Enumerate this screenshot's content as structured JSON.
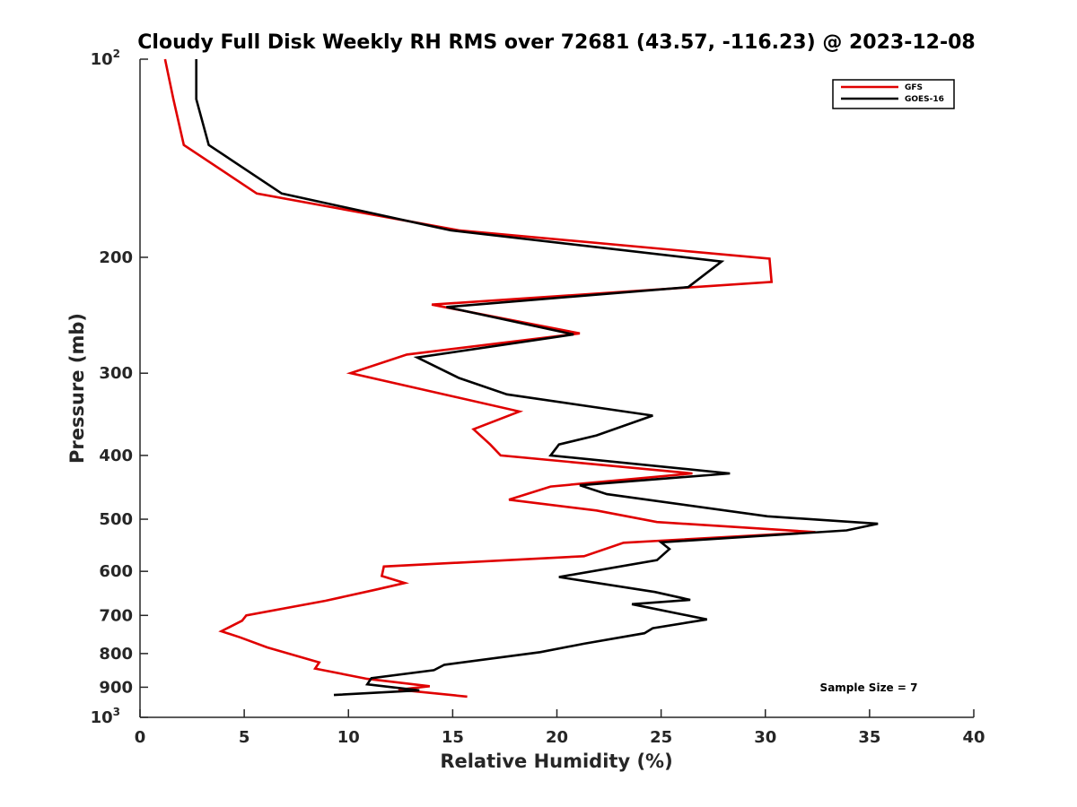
{
  "chart_data": {
    "type": "line",
    "title": "Cloudy Full Disk Weekly RH RMS over 72681 (43.57, -116.23) @ 2023-12-08",
    "xlabel": "Relative Humidity (%)",
    "ylabel": "Pressure (mb)",
    "xlim": [
      0,
      40
    ],
    "ylim": [
      100,
      1000
    ],
    "y_scale": "log",
    "y_reversed": true,
    "grid": false,
    "legend_position": "top-right",
    "x_ticks": [
      0,
      5,
      10,
      15,
      20,
      25,
      30,
      35,
      40
    ],
    "x_tick_labels": [
      "0",
      "5",
      "10",
      "15",
      "20",
      "25",
      "30",
      "35",
      "40"
    ],
    "y_ticks": [
      100,
      200,
      300,
      400,
      500,
      600,
      700,
      800,
      900,
      1000
    ],
    "y_tick_labels": [
      {
        "base": "10",
        "exp": "2"
      },
      {
        "base": "200"
      },
      {
        "base": "300"
      },
      {
        "base": "400"
      },
      {
        "base": "500"
      },
      {
        "base": "600"
      },
      {
        "base": "700"
      },
      {
        "base": "800"
      },
      {
        "base": "900"
      },
      {
        "base": "10",
        "exp": "3"
      }
    ],
    "series": [
      {
        "name": "GFS",
        "color": "#e00000",
        "points": [
          [
            1.2,
            100
          ],
          [
            1.6,
            115
          ],
          [
            2.1,
            135
          ],
          [
            5.6,
            160
          ],
          [
            15.3,
            182
          ],
          [
            30.2,
            201
          ],
          [
            30.3,
            218
          ],
          [
            14.0,
            236
          ],
          [
            21.1,
            261
          ],
          [
            12.8,
            281
          ],
          [
            10.1,
            300
          ],
          [
            18.2,
            343
          ],
          [
            16.0,
            365
          ],
          [
            16.8,
            385
          ],
          [
            17.3,
            400
          ],
          [
            26.5,
            426
          ],
          [
            19.7,
            446
          ],
          [
            17.7,
            467
          ],
          [
            21.9,
            485
          ],
          [
            24.8,
            505
          ],
          [
            32.4,
            523
          ],
          [
            23.2,
            543
          ],
          [
            21.3,
            569
          ],
          [
            11.7,
            590
          ],
          [
            11.6,
            610
          ],
          [
            12.7,
            625
          ],
          [
            11.3,
            640
          ],
          [
            8.9,
            665
          ],
          [
            5.1,
            700
          ],
          [
            4.9,
            713
          ],
          [
            3.9,
            740
          ],
          [
            4.8,
            756
          ],
          [
            6.1,
            783
          ],
          [
            8.6,
            825
          ],
          [
            8.4,
            843
          ],
          [
            10.9,
            874
          ],
          [
            13.9,
            897
          ],
          [
            12.4,
            908
          ],
          [
            15.7,
            930
          ]
        ]
      },
      {
        "name": "GOES-16",
        "color": "#000000",
        "points": [
          [
            2.7,
            100
          ],
          [
            2.7,
            115
          ],
          [
            3.3,
            135
          ],
          [
            6.8,
            160
          ],
          [
            14.9,
            182
          ],
          [
            27.9,
            203
          ],
          [
            26.3,
            222
          ],
          [
            14.7,
            238
          ],
          [
            20.8,
            262
          ],
          [
            13.3,
            284
          ],
          [
            15.3,
            305
          ],
          [
            17.6,
            323
          ],
          [
            24.6,
            348
          ],
          [
            21.9,
            373
          ],
          [
            20.1,
            385
          ],
          [
            19.7,
            400
          ],
          [
            28.3,
            426
          ],
          [
            21.1,
            444
          ],
          [
            22.4,
            458
          ],
          [
            30.1,
            495
          ],
          [
            35.4,
            508
          ],
          [
            33.9,
            520
          ],
          [
            25.0,
            542
          ],
          [
            25.4,
            555
          ],
          [
            24.8,
            577
          ],
          [
            20.1,
            612
          ],
          [
            24.7,
            645
          ],
          [
            26.4,
            663
          ],
          [
            23.6,
            673
          ],
          [
            27.2,
            710
          ],
          [
            24.6,
            732
          ],
          [
            24.2,
            745
          ],
          [
            21.3,
            773
          ],
          [
            19.2,
            796
          ],
          [
            14.6,
            832
          ],
          [
            14.1,
            848
          ],
          [
            11.1,
            872
          ],
          [
            10.9,
            891
          ],
          [
            13.4,
            910
          ],
          [
            9.3,
            925
          ]
        ]
      }
    ],
    "annotations": [
      "Sample Size = 7"
    ]
  }
}
